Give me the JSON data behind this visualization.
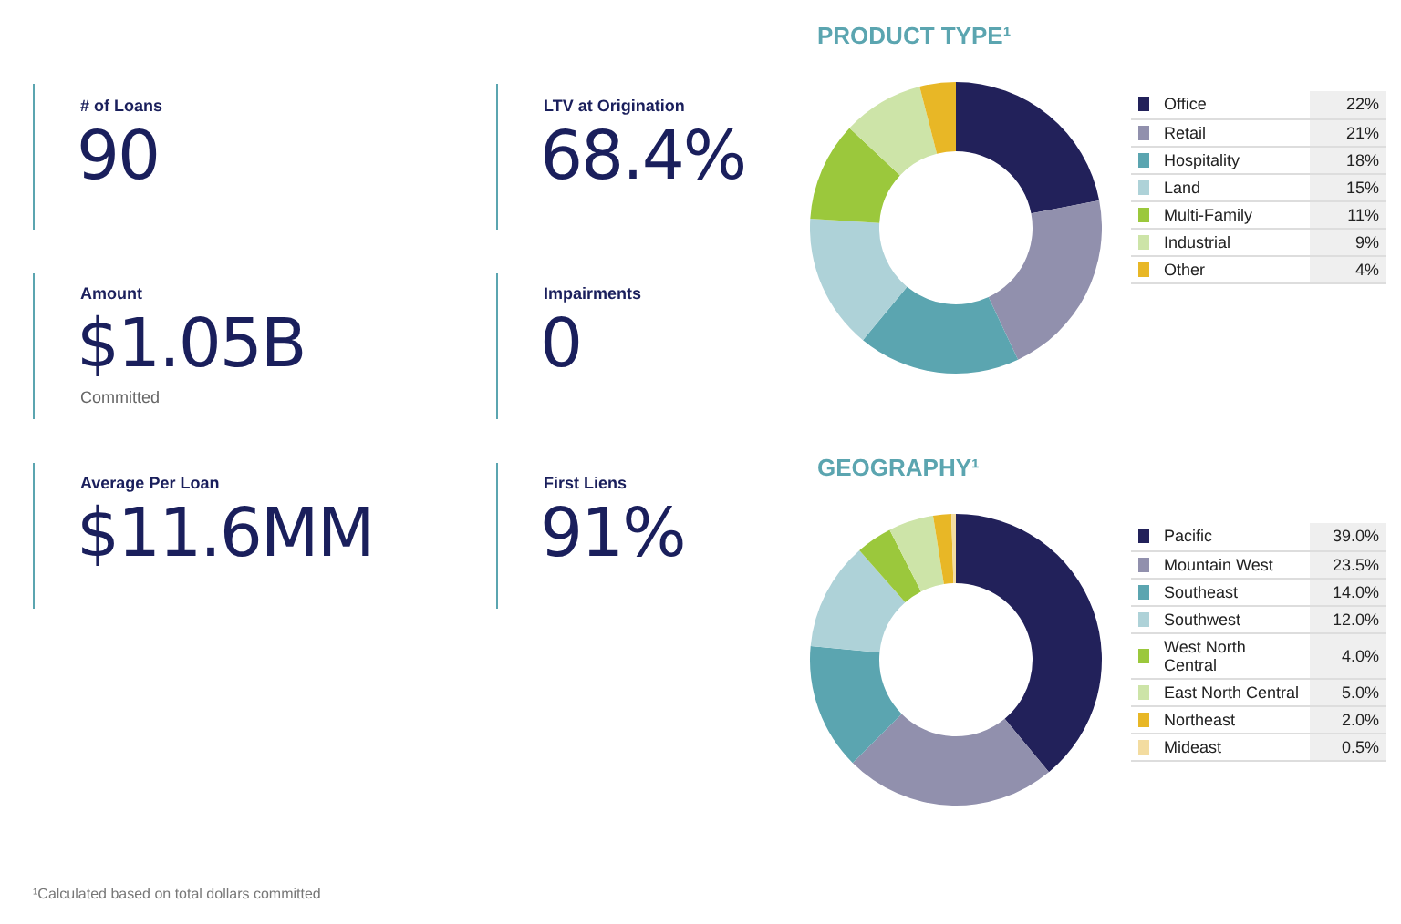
{
  "chart_data": [
    {
      "type": "other",
      "annotations": [
        "# of Loans",
        "90",
        "LTV at Origination",
        "68.4%",
        "Amount",
        "$1.05B",
        "Committed",
        "Impairments",
        "0",
        "Average Per Loan",
        "$11.6MM",
        "First Liens",
        "91%",
        "¹Calculated based on total dollars committed"
      ]
    },
    {
      "type": "donut",
      "title": "PRODUCT TYPE¹",
      "categories": [
        "Office",
        "Retail",
        "Hospitality",
        "Land",
        "Multi-Family",
        "Industrial",
        "Other"
      ],
      "values": [
        22,
        21,
        18,
        15,
        11,
        9,
        4
      ],
      "value_labels": [
        "22%",
        "21%",
        "18%",
        "15%",
        "11%",
        "9%",
        "4%"
      ],
      "colors": [
        "#22215a",
        "#9190ad",
        "#5ba5b0",
        "#aed2d8",
        "#9bc83c",
        "#cde4a8",
        "#e8b726"
      ],
      "legend": "right"
    },
    {
      "type": "donut",
      "title": "GEOGRAPHY¹",
      "categories": [
        "Pacific",
        "Mountain West",
        "Southeast",
        "Southwest",
        "West North Central",
        "East North Central",
        "Northeast",
        "Mideast"
      ],
      "values": [
        39.0,
        23.5,
        14.0,
        12.0,
        4.0,
        5.0,
        2.0,
        0.5
      ],
      "value_labels": [
        "39.0%",
        "23.5%",
        "14.0%",
        "12.0%",
        "4.0%",
        "5.0%",
        "2.0%",
        "0.5%"
      ],
      "colors": [
        "#22215a",
        "#9190ad",
        "#5ba5b0",
        "#aed2d8",
        "#9bc83c",
        "#cde4a8",
        "#e8b726",
        "#f3dca0"
      ],
      "legend": "right"
    }
  ]
}
